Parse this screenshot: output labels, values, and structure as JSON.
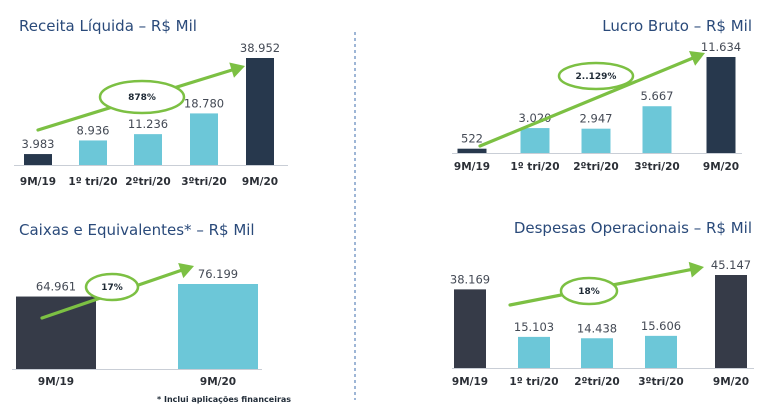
{
  "colors": {
    "title": "#2a4a7a",
    "bar_light": "#6cc7d8",
    "bar_dark_navy": "#27384d",
    "bar_dark_slate": "#363b48",
    "arrow": "#7cc043",
    "divider": "#6a8fc0"
  },
  "footnote": "* Inclui aplicações financeiras",
  "chart_data": [
    {
      "type": "bar",
      "title": "Receita Líquida – R$ Mil",
      "categories": [
        "9M/19",
        "1º tri/20",
        "2ºtri/20",
        "3ºtri/20",
        "9M/20"
      ],
      "values": [
        3983,
        8936,
        11236,
        18780,
        38952
      ],
      "value_labels": [
        "3.983",
        "8.936",
        "11.236",
        "18.780",
        "38.952"
      ],
      "highlight": [
        0,
        4
      ],
      "growth_label": "878%"
    },
    {
      "type": "bar",
      "title": "Lucro Bruto – R$ Mil",
      "categories": [
        "9M/19",
        "1º tri/20",
        "2ºtri/20",
        "3ºtri/20",
        "9M/20"
      ],
      "values": [
        522,
        3020,
        2947,
        5667,
        11634
      ],
      "value_labels": [
        "522",
        "3.020",
        "2.947",
        "5.667",
        "11.634"
      ],
      "highlight": [
        0,
        4
      ],
      "growth_label": "2..129%"
    },
    {
      "type": "bar",
      "title": "Caixas e Equivalentes* – R$ Mil",
      "categories": [
        "9M/19",
        "9M/20"
      ],
      "values": [
        64961,
        76199
      ],
      "value_labels": [
        "64.961",
        "76.199"
      ],
      "highlight": [
        0
      ],
      "growth_label": "17%"
    },
    {
      "type": "bar",
      "title": "Despesas Operacionais – R$ Mil",
      "categories": [
        "9M/19",
        "1º tri/20",
        "2ºtri/20",
        "3ºtri/20",
        "9M/20"
      ],
      "values": [
        38169,
        15103,
        14438,
        15606,
        45147
      ],
      "value_labels": [
        "38.169",
        "15.103",
        "14.438",
        "15.606",
        "45.147"
      ],
      "highlight": [
        0,
        4
      ],
      "growth_label": "18%"
    }
  ]
}
